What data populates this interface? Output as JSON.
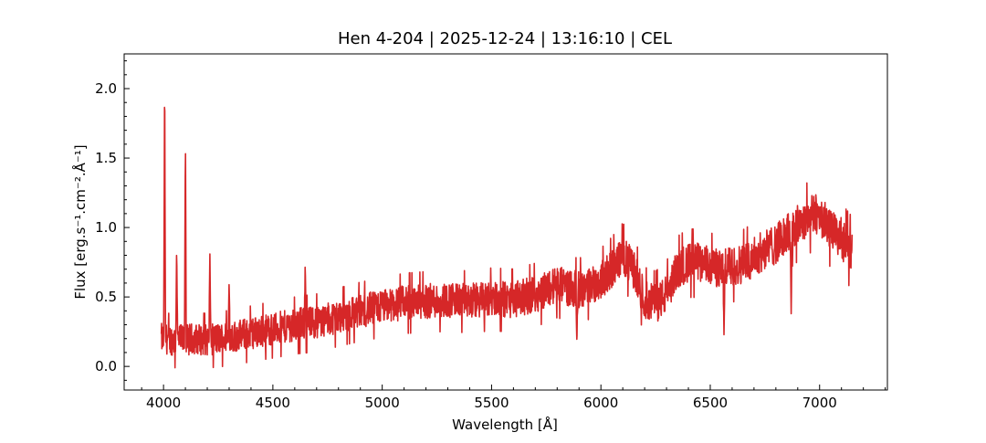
{
  "chart_data": {
    "type": "line",
    "title": "Hen 4-204 | 2025-12-24 | 13:16:10 | CEL",
    "xlabel": "Wavelength [Å]",
    "ylabel": "Flux [erg.s⁻¹.cm⁻².Å⁻¹]",
    "xlim": [
      3820,
      7310
    ],
    "ylim": [
      -0.17,
      2.25
    ],
    "xticks": [
      4000,
      4500,
      5000,
      5500,
      6000,
      6500,
      7000
    ],
    "xtick_labels": [
      "4000",
      "4500",
      "5000",
      "5500",
      "6000",
      "6500",
      "7000"
    ],
    "yticks": [
      0.0,
      0.5,
      1.0,
      1.5,
      2.0
    ],
    "ytick_labels": [
      "0.0",
      "0.5",
      "1.0",
      "1.5",
      "2.0"
    ],
    "grid": false,
    "line_color": "#d62728",
    "series": [
      {
        "x": [
          3990,
          4010,
          4040,
          4070,
          4100,
          4140,
          4200,
          4300,
          4400,
          4500,
          4600,
          4700,
          4800,
          4900,
          5000,
          5100,
          5200,
          5300,
          5400,
          5500,
          5600,
          5700,
          5800,
          5900,
          6000,
          6050,
          6100,
          6150,
          6200,
          6250,
          6300,
          6350,
          6400,
          6450,
          6500,
          6550,
          6600,
          6650,
          6700,
          6750,
          6800,
          6850,
          6900,
          6950,
          7000,
          7050,
          7100,
          7150
        ],
        "y": [
          0.2,
          0.2,
          0.19,
          0.19,
          0.19,
          0.2,
          0.19,
          0.21,
          0.24,
          0.27,
          0.3,
          0.32,
          0.36,
          0.4,
          0.43,
          0.46,
          0.47,
          0.48,
          0.47,
          0.49,
          0.48,
          0.52,
          0.59,
          0.55,
          0.62,
          0.7,
          0.8,
          0.7,
          0.48,
          0.45,
          0.52,
          0.7,
          0.75,
          0.75,
          0.72,
          0.7,
          0.72,
          0.74,
          0.79,
          0.84,
          0.88,
          0.95,
          1.02,
          1.08,
          1.1,
          0.98,
          0.92,
          0.82
        ]
      }
    ],
    "features": [
      {
        "x": 4005,
        "y": 2.14
      },
      {
        "x": 4100,
        "y": 1.68
      },
      {
        "x": 4212,
        "y": 0.81
      },
      {
        "x": 4300,
        "y": 0.63
      },
      {
        "x": 4060,
        "y": 0.87
      },
      {
        "x": 4648,
        "y": 0.76
      },
      {
        "x": 5890,
        "y": 0.16
      },
      {
        "x": 6563,
        "y": 0.2
      },
      {
        "x": 6870,
        "y": 0.38
      }
    ]
  }
}
